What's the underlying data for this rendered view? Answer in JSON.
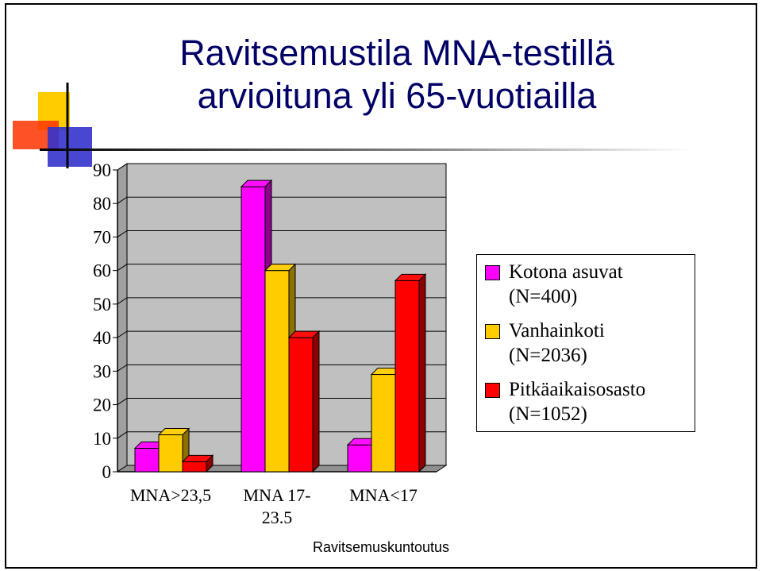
{
  "title": {
    "line1": "Ravitsemustila MNA-testillä",
    "line2": "arvioituna yli 65-vuotiailla"
  },
  "footer": "Ravitsemuskuntoutus",
  "colors": {
    "title": "#000066",
    "magenta": "#ff00ff",
    "gold": "#ffcc00",
    "red": "#ff0000",
    "plot_bg": "#c0c0c0",
    "logo_yellow": "#ffcc00",
    "logo_red": "#ff3300",
    "logo_blue": "#3333cc"
  },
  "legend": [
    {
      "line1": "Kotona asuvat",
      "line2": "(N=400)"
    },
    {
      "line1": "Vanhainkoti",
      "line2": "(N=2036)"
    },
    {
      "line1": "Pitkäaikaisosasto",
      "line2": "(N=1052)"
    }
  ],
  "chart_data": {
    "type": "bar",
    "categories": [
      "MNA>23,5",
      "MNA 17-23.5",
      "MNA<17"
    ],
    "category_label_lines": [
      [
        "MNA>23,5"
      ],
      [
        "MNA 17-",
        "23.5"
      ],
      [
        "MNA<17"
      ]
    ],
    "series": [
      {
        "name": "Kotona asuvat (N=400)",
        "color": "#ff00ff",
        "values": [
          7,
          85,
          8
        ]
      },
      {
        "name": "Vanhainkoti (N=2036)",
        "color": "#ffcc00",
        "values": [
          11,
          60,
          29
        ]
      },
      {
        "name": "Pitkäaikaisosasto (N=1052)",
        "color": "#ff0000",
        "values": [
          3,
          40,
          57
        ]
      }
    ],
    "ylim": [
      0,
      90
    ],
    "yticks": [
      "0",
      "10",
      "20",
      "30",
      "40",
      "50",
      "60",
      "70",
      "80",
      "90"
    ],
    "grid": true,
    "legend_position": "right",
    "style": "3d"
  }
}
